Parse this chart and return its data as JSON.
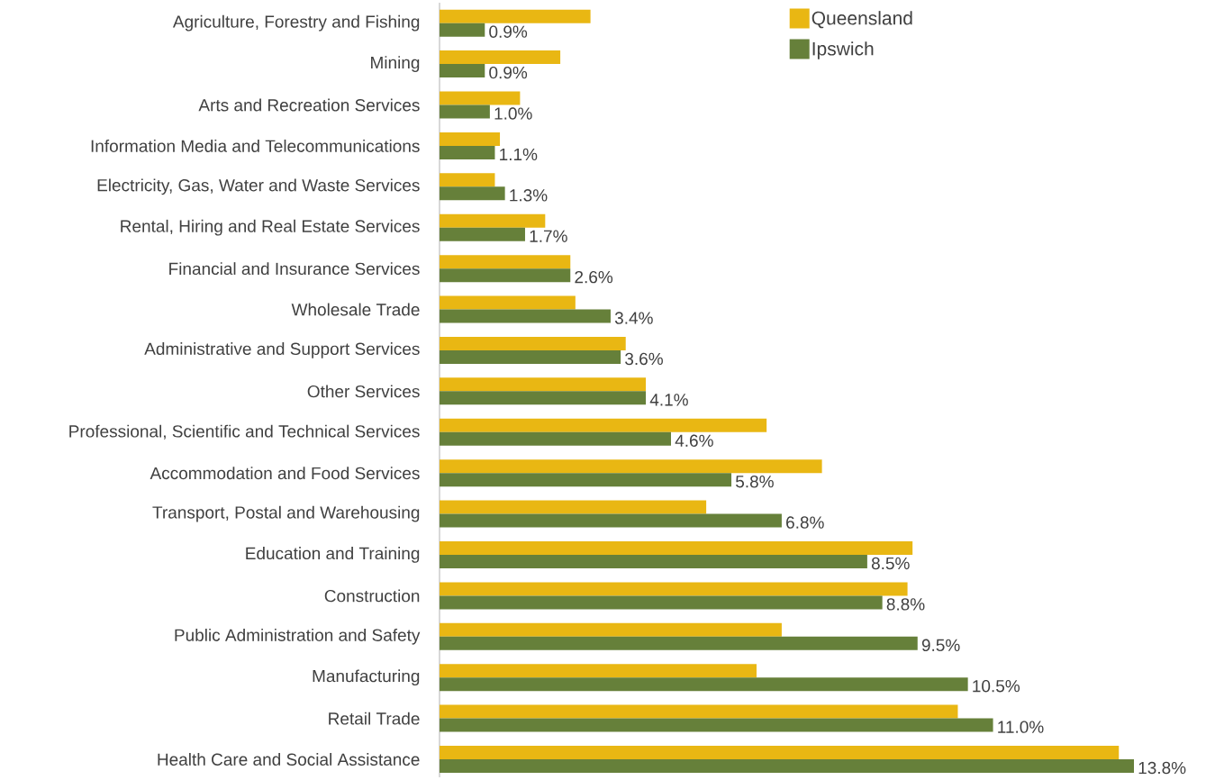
{
  "chart_data": {
    "type": "bar",
    "orientation": "horizontal",
    "legend": "top right",
    "xlim": [
      0,
      13.8
    ],
    "categories": [
      "Agriculture, Forestry and Fishing",
      "Mining",
      "Arts and Recreation Services",
      "Information Media and Telecommunications",
      "Electricity, Gas, Water and Waste Services",
      "Rental, Hiring and Real Estate Services",
      "Financial and Insurance Services",
      "Wholesale Trade",
      "Administrative and Support Services",
      "Other Services",
      "Professional, Scientific and Technical Services",
      "Accommodation and Food Services",
      "Transport, Postal and Warehousing",
      "Education and Training",
      "Construction",
      "Public Administration and Safety",
      "Manufacturing",
      "Retail Trade",
      "Health Care and Social Assistance"
    ],
    "series": [
      {
        "name": "Queensland",
        "color": "#e9b713",
        "values": [
          3.0,
          2.4,
          1.6,
          1.2,
          1.1,
          2.1,
          2.6,
          2.7,
          3.7,
          4.1,
          6.5,
          7.6,
          5.3,
          9.4,
          9.3,
          6.8,
          6.3,
          10.3,
          13.5
        ]
      },
      {
        "name": "Ipswich",
        "color": "#66803a",
        "values": [
          0.9,
          0.9,
          1.0,
          1.1,
          1.3,
          1.7,
          2.6,
          3.4,
          3.6,
          4.1,
          4.6,
          5.8,
          6.8,
          8.5,
          8.8,
          9.5,
          10.5,
          11.0,
          13.8
        ],
        "value_labels": [
          "0.9%",
          "0.9%",
          "1.0%",
          "1.1%",
          "1.3%",
          "1.7%",
          "2.6%",
          "3.4%",
          "3.6%",
          "4.1%",
          "4.6%",
          "5.8%",
          "6.8%",
          "8.5%",
          "8.8%",
          "9.5%",
          "10.5%",
          "11.0%",
          "13.8%"
        ]
      }
    ]
  }
}
